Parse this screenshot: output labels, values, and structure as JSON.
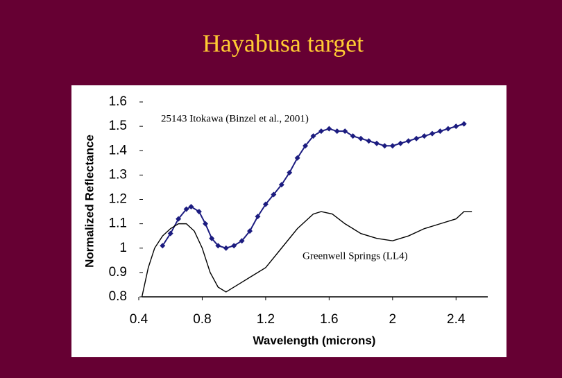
{
  "chart_data": {
    "type": "line",
    "title": "Hayabusa target",
    "x_label": "Wavelength (microns)",
    "y_label": "Normalized Reflectance",
    "xlim": [
      0.4,
      2.6
    ],
    "ylim": [
      0.8,
      1.6
    ],
    "xticks": [
      0.4,
      0.8,
      1.2,
      1.6,
      2,
      2.4
    ],
    "yticks": [
      0.8,
      0.9,
      1,
      1.1,
      1.2,
      1.3,
      1.4,
      1.5,
      1.6
    ],
    "grid": false,
    "series": [
      {
        "name": "25143 Itokawa (Binzel et al., 2001)",
        "color": "#1c1c80",
        "markers": true,
        "x": [
          0.55,
          0.6,
          0.65,
          0.7,
          0.73,
          0.78,
          0.82,
          0.86,
          0.9,
          0.95,
          1.0,
          1.05,
          1.1,
          1.15,
          1.2,
          1.25,
          1.3,
          1.35,
          1.4,
          1.45,
          1.5,
          1.55,
          1.6,
          1.65,
          1.7,
          1.75,
          1.8,
          1.85,
          1.9,
          1.95,
          2.0,
          2.05,
          2.1,
          2.15,
          2.2,
          2.25,
          2.3,
          2.35,
          2.4,
          2.45
        ],
        "values": [
          1.01,
          1.06,
          1.12,
          1.16,
          1.17,
          1.15,
          1.1,
          1.04,
          1.01,
          1.0,
          1.01,
          1.03,
          1.07,
          1.13,
          1.18,
          1.22,
          1.26,
          1.31,
          1.37,
          1.42,
          1.46,
          1.48,
          1.49,
          1.48,
          1.48,
          1.46,
          1.45,
          1.44,
          1.43,
          1.42,
          1.42,
          1.43,
          1.44,
          1.45,
          1.46,
          1.47,
          1.48,
          1.49,
          1.5,
          1.51
        ]
      },
      {
        "name": "Greenwell Springs (LL4)",
        "color": "#000000",
        "markers": false,
        "x": [
          0.42,
          0.46,
          0.5,
          0.55,
          0.6,
          0.65,
          0.7,
          0.75,
          0.8,
          0.85,
          0.9,
          0.95,
          1.0,
          1.05,
          1.1,
          1.2,
          1.3,
          1.4,
          1.5,
          1.55,
          1.62,
          1.7,
          1.8,
          1.9,
          2.0,
          2.1,
          2.2,
          2.3,
          2.4,
          2.45,
          2.5
        ],
        "values": [
          0.8,
          0.92,
          1.0,
          1.05,
          1.08,
          1.1,
          1.1,
          1.07,
          1.0,
          0.9,
          0.84,
          0.82,
          0.84,
          0.86,
          0.88,
          0.92,
          1.0,
          1.08,
          1.14,
          1.15,
          1.14,
          1.1,
          1.06,
          1.04,
          1.03,
          1.05,
          1.08,
          1.1,
          1.12,
          1.15,
          1.15
        ]
      }
    ]
  }
}
